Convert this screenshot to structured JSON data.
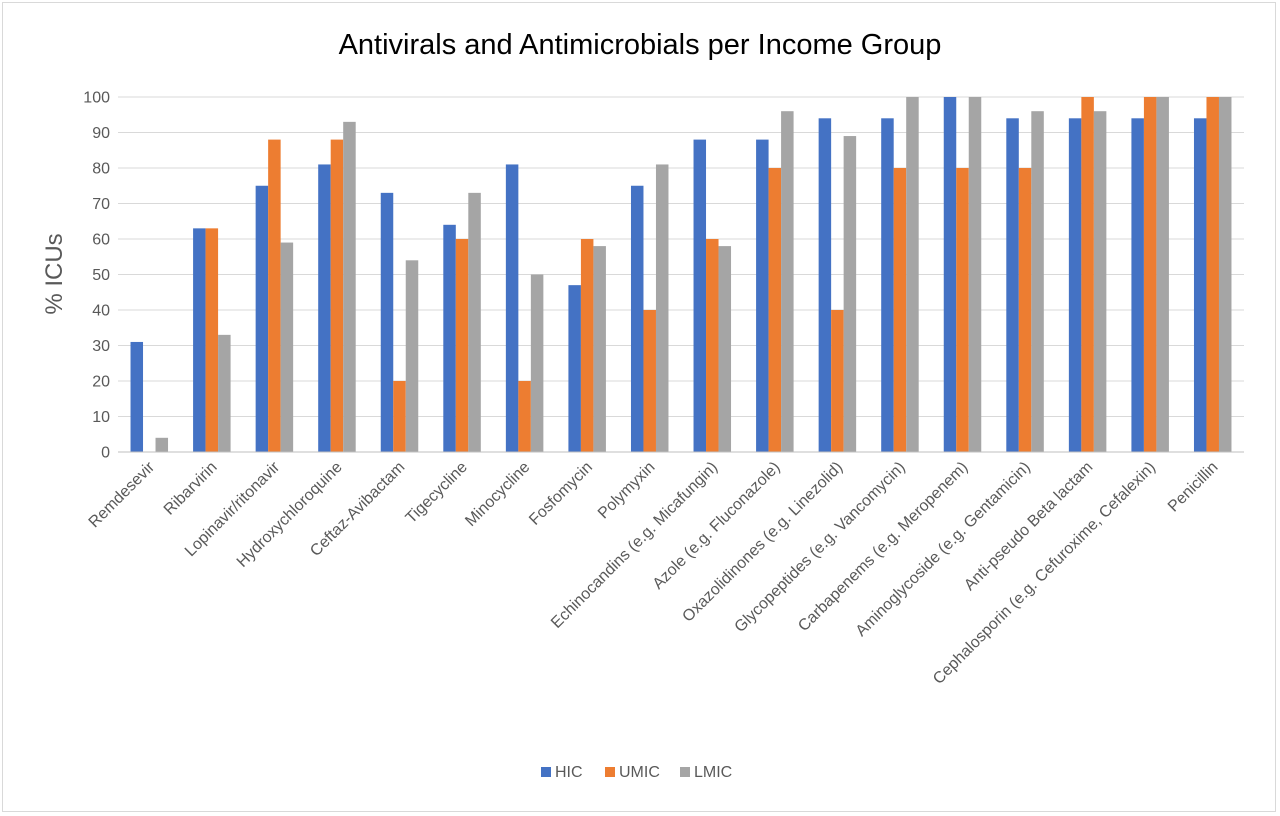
{
  "chart_data": {
    "type": "bar",
    "title": "Antivirals and Antimicrobials per Income Group",
    "xlabel": "",
    "ylabel": "% ICUs",
    "ylim": [
      0,
      100
    ],
    "yticks": [
      0,
      10,
      20,
      30,
      40,
      50,
      60,
      70,
      80,
      90,
      100
    ],
    "grid": true,
    "legend_position": "bottom",
    "categories": [
      "Remdesevir",
      "Ribarvirin",
      "Lopinavir/ritonavir",
      "Hydroxychloroquine",
      "Ceftaz-Avibactam",
      "Tigecycline",
      "Minocycline",
      "Fosfomycin",
      "Polymyxin",
      "Echinocandins (e.g. Micafungin)",
      "Azole (e.g. Fluconazole)",
      "Oxazolidinones (e.g. Linezolid)",
      "Glycopeptides (e.g. Vancomycin)",
      "Carbapenems (e.g. Meropenem)",
      "Aminoglycoside (e.g. Gentamicin)",
      "Anti-pseudo Beta lactam",
      "Cephalosporin (e.g. Cefuroxime, Cefalexin)",
      "Penicillin"
    ],
    "series": [
      {
        "name": "HIC",
        "color": "#4472c4",
        "values": [
          31,
          63,
          75,
          81,
          73,
          64,
          81,
          47,
          75,
          88,
          88,
          94,
          94,
          100,
          94,
          94,
          94,
          94
        ]
      },
      {
        "name": "UMIC",
        "color": "#ed7d31",
        "values": [
          0,
          63,
          88,
          88,
          20,
          60,
          20,
          60,
          40,
          60,
          80,
          40,
          80,
          80,
          80,
          100,
          100,
          100
        ]
      },
      {
        "name": "LMIC",
        "color": "#a5a5a5",
        "values": [
          4,
          33,
          59,
          93,
          54,
          73,
          50,
          58,
          81,
          58,
          96,
          89,
          100,
          100,
          96,
          96,
          100,
          100
        ]
      }
    ]
  }
}
